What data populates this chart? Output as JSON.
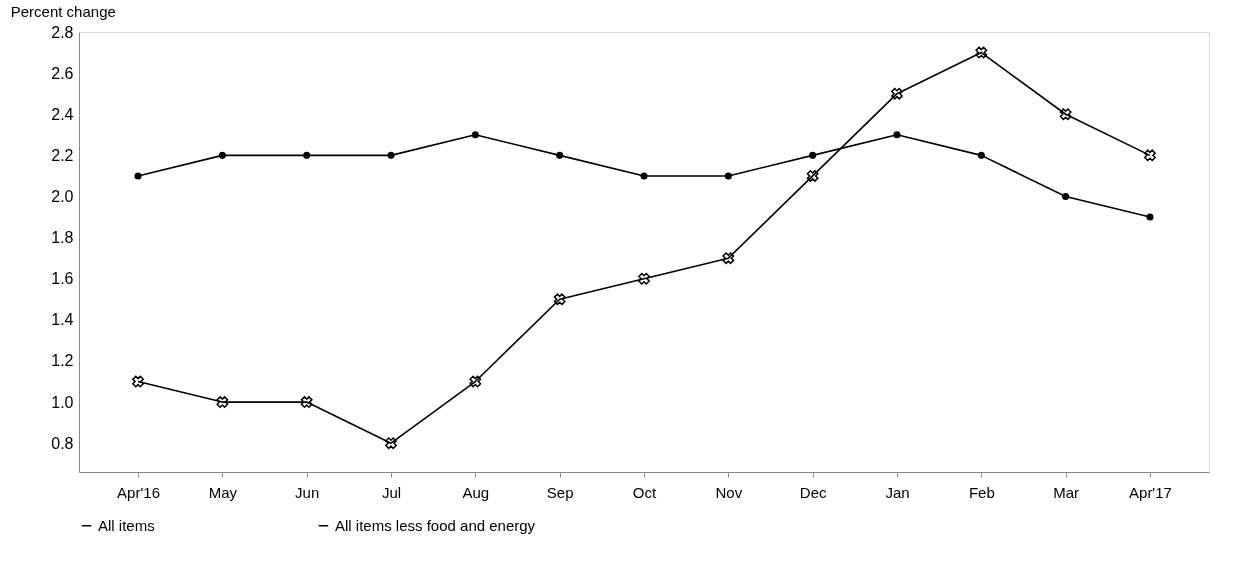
{
  "chart_data": {
    "type": "line",
    "title": "Percent change",
    "categories": [
      "Apr'16",
      "May",
      "Jun",
      "Jul",
      "Aug",
      "Sep",
      "Oct",
      "Nov",
      "Dec",
      "Jan",
      "Feb",
      "Mar",
      "Apr'17"
    ],
    "series": [
      {
        "name": "All items",
        "color": "#000000",
        "marker": "cross",
        "values": [
          1.1,
          1.0,
          1.0,
          0.8,
          1.1,
          1.5,
          1.6,
          1.7,
          2.1,
          2.5,
          2.7,
          2.4,
          2.2
        ]
      },
      {
        "name": "All items less food and energy",
        "color": "#000000",
        "marker": "circle",
        "values": [
          2.1,
          2.2,
          2.2,
          2.2,
          2.3,
          2.2,
          2.1,
          2.1,
          2.2,
          2.3,
          2.2,
          2.0,
          1.9
        ]
      }
    ],
    "ylim": [
      0.66,
      2.8
    ],
    "yticks": [
      0.8,
      {
        "value": 1,
        "label": "1.0"
      },
      1.2,
      1.4,
      1.6,
      1.8,
      {
        "value": 2,
        "label": "2.0"
      },
      2.2,
      2.4,
      2.6,
      2.8
    ],
    "grid": false,
    "legend": "bottom",
    "line_style": "solid"
  }
}
